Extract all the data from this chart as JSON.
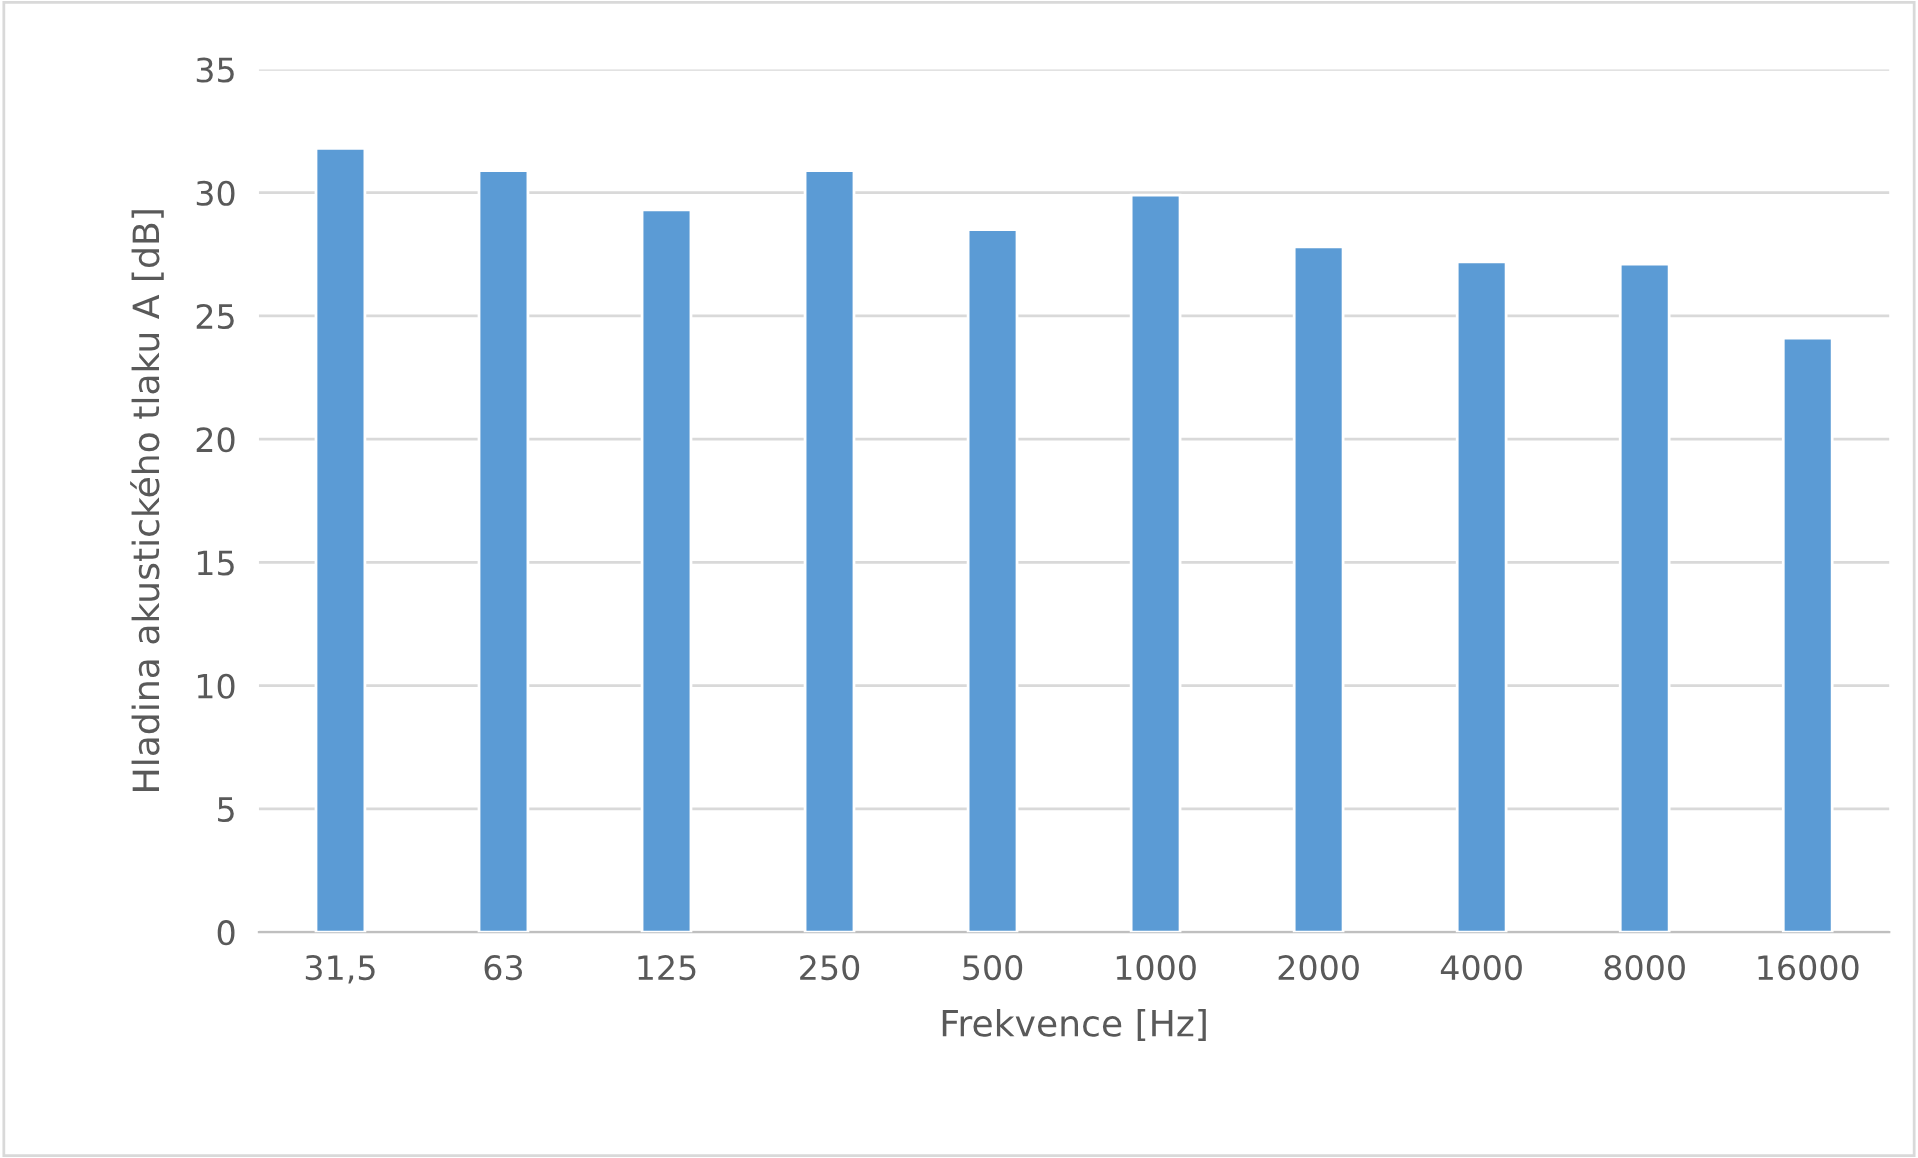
{
  "chart_data": {
    "type": "bar",
    "xlabel": "Frekvence [Hz]",
    "ylabel": "Hladina akustického tlaku A [dB]",
    "categories": [
      "31,5",
      "63",
      "125",
      "250",
      "500",
      "1000",
      "2000",
      "4000",
      "8000",
      "16000"
    ],
    "values": [
      31.8,
      30.9,
      29.3,
      30.9,
      28.5,
      29.9,
      27.8,
      27.2,
      27.1,
      24.1
    ],
    "color": "#5b9bd5",
    "ylim": [
      0,
      35
    ],
    "yticks": [
      0,
      5,
      10,
      15,
      20,
      25,
      30,
      35
    ],
    "grid": "y",
    "legend": false
  }
}
